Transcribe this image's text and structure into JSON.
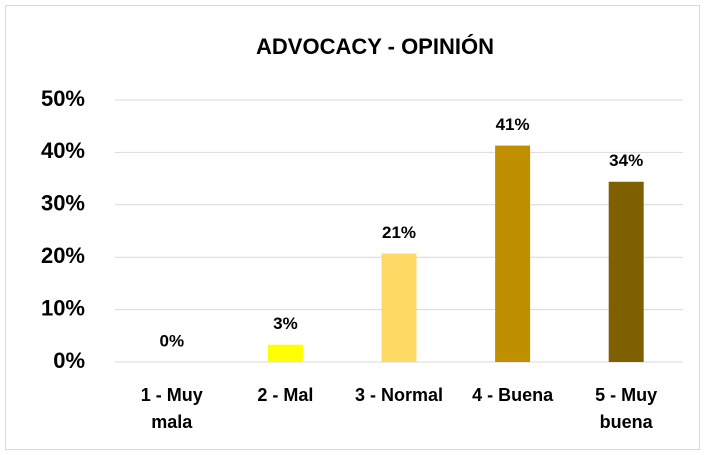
{
  "chart_data": {
    "type": "bar",
    "title": "ADVOCACY - OPINIÓN",
    "categories": [
      "1 - Muy mala",
      "2 - Mal",
      "3 - Normal",
      "4 - Buena",
      "5 - Muy buena"
    ],
    "values": [
      0,
      3.3,
      20.7,
      41.3,
      34.4
    ],
    "value_labels": [
      "0%",
      "3%",
      "21%",
      "41%",
      "34%"
    ],
    "colors": [
      "#ffe699",
      "#ffff00",
      "#ffd966",
      "#bf8f00",
      "#7f6000"
    ],
    "ylim": [
      0,
      50
    ],
    "yticks": [
      {
        "value": 0,
        "label": "0%"
      },
      {
        "value": 10,
        "label": "10%"
      },
      {
        "value": 20,
        "label": "20%"
      },
      {
        "value": 30,
        "label": "30%"
      },
      {
        "value": 40,
        "label": "40%"
      },
      {
        "value": 50,
        "label": "50%"
      }
    ],
    "grid": true
  }
}
